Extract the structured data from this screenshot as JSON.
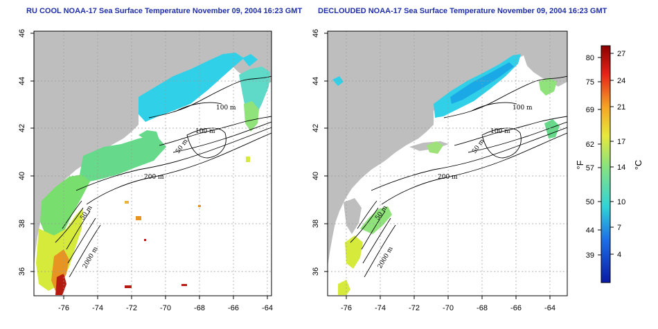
{
  "panels": [
    {
      "id": "left",
      "title": "RU COOL NOAA-17 Sea Surface Temperature November 09, 2004 16:23 GMT",
      "contour_labels": [
        "100 m",
        "100 m",
        "50 m",
        "200 m",
        "50 m",
        "2000 m"
      ]
    },
    {
      "id": "right",
      "title": "DECLOUDED NOAA-17 Sea Surface Temperature November 09, 2004 16:23 GMT",
      "contour_labels": [
        "100 m",
        "100 m",
        "50 m",
        "200 m",
        "50 m",
        "2000 m"
      ]
    }
  ],
  "axes": {
    "lon_ticks": [
      "-76",
      "-74",
      "-72",
      "-70",
      "-68",
      "-66",
      "-64"
    ],
    "lat_ticks": [
      "46",
      "44",
      "42",
      "40",
      "38",
      "36"
    ],
    "lon_range": [
      -77.2,
      -62.9
    ],
    "lat_range": [
      35,
      46
    ]
  },
  "colorbar": {
    "fahrenheit_label": "°F",
    "celsius_label": "°C",
    "fahrenheit_ticks": [
      "80",
      "75",
      "69",
      "62",
      "57",
      "50",
      "44",
      "39"
    ],
    "celsius_ticks": [
      "27",
      "24",
      "21",
      "17",
      "14",
      "10",
      "7",
      "4"
    ],
    "colors": [
      "#8b0000",
      "#e8221a",
      "#f5a623",
      "#e7e93a",
      "#8fe37a",
      "#2fd4d6",
      "#1e6ee8",
      "#0a1aa6"
    ]
  },
  "colors": {
    "land": "#bebebe",
    "water_background": "#ffffff",
    "grid": "#9a9a9a",
    "title": "#1f2fa8",
    "sst_cold": "#2fd0e8",
    "sst_cool": "#66d98a",
    "sst_mid": "#d6ea3c",
    "sst_warm": "#e89423",
    "sst_hot": "#b61b12"
  }
}
